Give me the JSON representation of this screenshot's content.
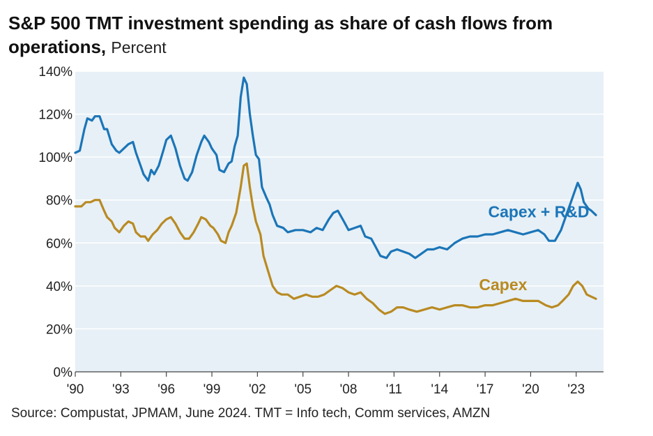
{
  "title": "S&P 500 TMT investment spending as share of cash flows from operations,",
  "title_unit": "Percent",
  "source": "Source: Compustat, JPMAM, June 2024. TMT = Info tech, Comm services, AMZN",
  "colors": {
    "plot_bg": "#e7f0f6",
    "grid": "#ffffff",
    "capex_rd": "#1b75b8",
    "capex": "#b98a22"
  },
  "chart_data": {
    "type": "line",
    "title": "S&P 500 TMT investment spending as share of cash flows from operations",
    "ylabel": "Percent",
    "ylim": [
      0,
      140
    ],
    "xlim": [
      1990,
      2024.8
    ],
    "y_ticks": [
      0,
      20,
      40,
      60,
      80,
      100,
      120,
      140
    ],
    "y_tick_labels": [
      "0%",
      "20%",
      "40%",
      "60%",
      "80%",
      "100%",
      "120%",
      "140%"
    ],
    "x_ticks": [
      1990,
      1993,
      1996,
      1999,
      2002,
      2005,
      2008,
      2011,
      2014,
      2017,
      2020,
      2023
    ],
    "x_tick_labels": [
      "'90",
      "'93",
      "'96",
      "'99",
      "'02",
      "'05",
      "'08",
      "'11",
      "'14",
      "'17",
      "'20",
      "'23"
    ],
    "grid": "horizontal",
    "series": [
      {
        "name": "Capex + R&D",
        "color": "#1b75b8",
        "points": [
          [
            1990.0,
            102
          ],
          [
            1990.3,
            103
          ],
          [
            1990.6,
            113
          ],
          [
            1990.8,
            118
          ],
          [
            1991.1,
            117
          ],
          [
            1991.3,
            119
          ],
          [
            1991.6,
            119
          ],
          [
            1991.9,
            113
          ],
          [
            1992.1,
            113
          ],
          [
            1992.4,
            106
          ],
          [
            1992.7,
            103
          ],
          [
            1992.9,
            102
          ],
          [
            1993.2,
            104
          ],
          [
            1993.5,
            106
          ],
          [
            1993.8,
            107
          ],
          [
            1994.0,
            102
          ],
          [
            1994.3,
            96
          ],
          [
            1994.5,
            92
          ],
          [
            1994.8,
            89
          ],
          [
            1995.0,
            94
          ],
          [
            1995.2,
            92
          ],
          [
            1995.5,
            96
          ],
          [
            1995.8,
            103
          ],
          [
            1996.0,
            108
          ],
          [
            1996.3,
            110
          ],
          [
            1996.6,
            104
          ],
          [
            1996.9,
            96
          ],
          [
            1997.2,
            90
          ],
          [
            1997.4,
            89
          ],
          [
            1997.7,
            93
          ],
          [
            1998.0,
            101
          ],
          [
            1998.3,
            107
          ],
          [
            1998.5,
            110
          ],
          [
            1998.8,
            107
          ],
          [
            1999.0,
            104
          ],
          [
            1999.3,
            101
          ],
          [
            1999.5,
            94
          ],
          [
            1999.8,
            93
          ],
          [
            2000.1,
            97
          ],
          [
            2000.3,
            98
          ],
          [
            2000.5,
            105
          ],
          [
            2000.7,
            110
          ],
          [
            2000.9,
            128
          ],
          [
            2001.1,
            137
          ],
          [
            2001.3,
            134
          ],
          [
            2001.5,
            120
          ],
          [
            2001.7,
            110
          ],
          [
            2001.9,
            101
          ],
          [
            2002.1,
            99
          ],
          [
            2002.3,
            86
          ],
          [
            2002.6,
            81
          ],
          [
            2002.8,
            78
          ],
          [
            2003.0,
            73
          ],
          [
            2003.3,
            68
          ],
          [
            2003.7,
            67
          ],
          [
            2004.0,
            65
          ],
          [
            2004.5,
            66
          ],
          [
            2005.0,
            66
          ],
          [
            2005.5,
            65
          ],
          [
            2005.9,
            67
          ],
          [
            2006.3,
            66
          ],
          [
            2006.7,
            71
          ],
          [
            2007.0,
            74
          ],
          [
            2007.3,
            75
          ],
          [
            2007.7,
            70
          ],
          [
            2008.0,
            66
          ],
          [
            2008.4,
            67
          ],
          [
            2008.8,
            68
          ],
          [
            2009.1,
            63
          ],
          [
            2009.5,
            62
          ],
          [
            2009.8,
            58
          ],
          [
            2010.1,
            54
          ],
          [
            2010.5,
            53
          ],
          [
            2010.8,
            56
          ],
          [
            2011.2,
            57
          ],
          [
            2011.6,
            56
          ],
          [
            2012.0,
            55
          ],
          [
            2012.4,
            53
          ],
          [
            2012.8,
            55
          ],
          [
            2013.2,
            57
          ],
          [
            2013.6,
            57
          ],
          [
            2014.0,
            58
          ],
          [
            2014.5,
            57
          ],
          [
            2015.0,
            60
          ],
          [
            2015.5,
            62
          ],
          [
            2016.0,
            63
          ],
          [
            2016.5,
            63
          ],
          [
            2017.0,
            64
          ],
          [
            2017.5,
            64
          ],
          [
            2018.0,
            65
          ],
          [
            2018.5,
            66
          ],
          [
            2019.0,
            65
          ],
          [
            2019.5,
            64
          ],
          [
            2020.0,
            65
          ],
          [
            2020.5,
            66
          ],
          [
            2020.9,
            64
          ],
          [
            2021.2,
            61
          ],
          [
            2021.6,
            61
          ],
          [
            2022.0,
            66
          ],
          [
            2022.3,
            72
          ],
          [
            2022.6,
            78
          ],
          [
            2022.9,
            84
          ],
          [
            2023.1,
            88
          ],
          [
            2023.3,
            85
          ],
          [
            2023.5,
            79
          ],
          [
            2023.8,
            76
          ],
          [
            2024.0,
            75
          ],
          [
            2024.3,
            73
          ]
        ]
      },
      {
        "name": "Capex",
        "color": "#b98a22",
        "points": [
          [
            1990.0,
            77
          ],
          [
            1990.4,
            77
          ],
          [
            1990.7,
            79
          ],
          [
            1991.0,
            79
          ],
          [
            1991.3,
            80
          ],
          [
            1991.6,
            80
          ],
          [
            1991.9,
            75
          ],
          [
            1992.1,
            72
          ],
          [
            1992.4,
            70
          ],
          [
            1992.6,
            67
          ],
          [
            1992.9,
            65
          ],
          [
            1993.2,
            68
          ],
          [
            1993.5,
            70
          ],
          [
            1993.8,
            69
          ],
          [
            1994.0,
            65
          ],
          [
            1994.3,
            63
          ],
          [
            1994.6,
            63
          ],
          [
            1994.8,
            61
          ],
          [
            1995.1,
            64
          ],
          [
            1995.4,
            66
          ],
          [
            1995.7,
            69
          ],
          [
            1996.0,
            71
          ],
          [
            1996.3,
            72
          ],
          [
            1996.6,
            69
          ],
          [
            1996.9,
            65
          ],
          [
            1997.2,
            62
          ],
          [
            1997.5,
            62
          ],
          [
            1997.8,
            65
          ],
          [
            1998.1,
            69
          ],
          [
            1998.3,
            72
          ],
          [
            1998.6,
            71
          ],
          [
            1998.9,
            68
          ],
          [
            1999.1,
            67
          ],
          [
            1999.4,
            64
          ],
          [
            1999.6,
            61
          ],
          [
            1999.9,
            60
          ],
          [
            2000.1,
            65
          ],
          [
            2000.3,
            68
          ],
          [
            2000.6,
            74
          ],
          [
            2000.9,
            86
          ],
          [
            2001.1,
            96
          ],
          [
            2001.3,
            97
          ],
          [
            2001.5,
            86
          ],
          [
            2001.7,
            77
          ],
          [
            2001.9,
            70
          ],
          [
            2002.2,
            64
          ],
          [
            2002.4,
            54
          ],
          [
            2002.7,
            47
          ],
          [
            2003.0,
            40
          ],
          [
            2003.3,
            37
          ],
          [
            2003.6,
            36
          ],
          [
            2004.0,
            36
          ],
          [
            2004.4,
            34
          ],
          [
            2004.8,
            35
          ],
          [
            2005.2,
            36
          ],
          [
            2005.6,
            35
          ],
          [
            2006.0,
            35
          ],
          [
            2006.4,
            36
          ],
          [
            2006.8,
            38
          ],
          [
            2007.2,
            40
          ],
          [
            2007.6,
            39
          ],
          [
            2008.0,
            37
          ],
          [
            2008.4,
            36
          ],
          [
            2008.8,
            37
          ],
          [
            2009.2,
            34
          ],
          [
            2009.6,
            32
          ],
          [
            2010.0,
            29
          ],
          [
            2010.4,
            27
          ],
          [
            2010.8,
            28
          ],
          [
            2011.2,
            30
          ],
          [
            2011.6,
            30
          ],
          [
            2012.0,
            29
          ],
          [
            2012.5,
            28
          ],
          [
            2013.0,
            29
          ],
          [
            2013.5,
            30
          ],
          [
            2014.0,
            29
          ],
          [
            2014.5,
            30
          ],
          [
            2015.0,
            31
          ],
          [
            2015.5,
            31
          ],
          [
            2016.0,
            30
          ],
          [
            2016.5,
            30
          ],
          [
            2017.0,
            31
          ],
          [
            2017.5,
            31
          ],
          [
            2018.0,
            32
          ],
          [
            2018.5,
            33
          ],
          [
            2019.0,
            34
          ],
          [
            2019.5,
            33
          ],
          [
            2020.0,
            33
          ],
          [
            2020.5,
            33
          ],
          [
            2021.0,
            31
          ],
          [
            2021.4,
            30
          ],
          [
            2021.8,
            31
          ],
          [
            2022.1,
            33
          ],
          [
            2022.5,
            36
          ],
          [
            2022.8,
            40
          ],
          [
            2023.1,
            42
          ],
          [
            2023.4,
            40
          ],
          [
            2023.7,
            36
          ],
          [
            2024.0,
            35
          ],
          [
            2024.3,
            34
          ]
        ]
      }
    ],
    "annotations": [
      {
        "text": "Capex + R&D",
        "series": "Capex + R&D"
      },
      {
        "text": "Capex",
        "series": "Capex"
      }
    ]
  }
}
